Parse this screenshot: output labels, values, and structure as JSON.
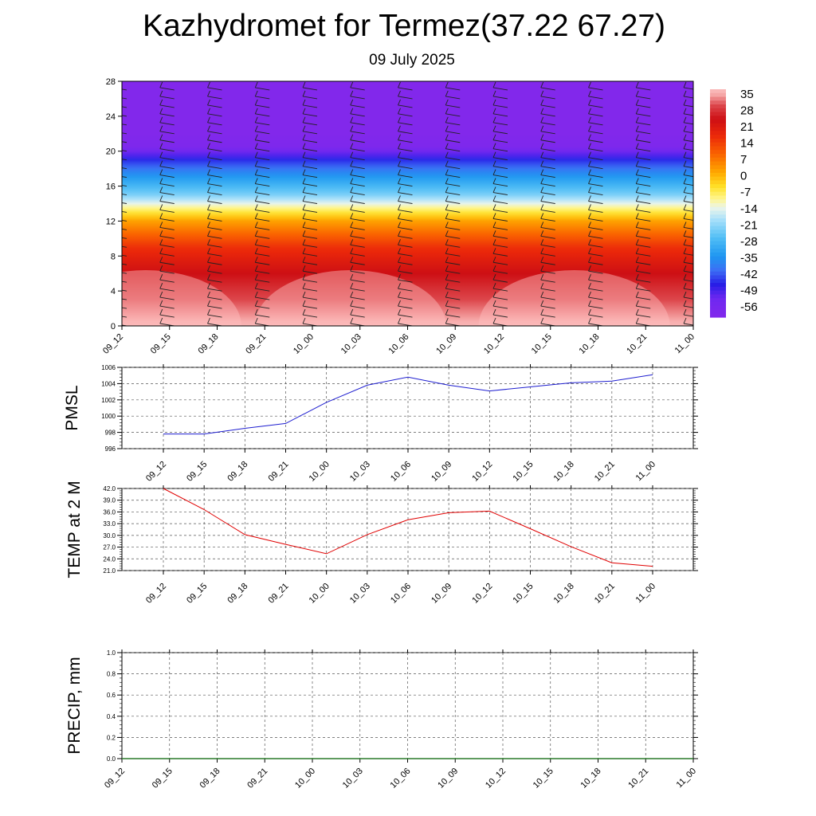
{
  "title": "Kazhydromet for Termez(37.22 67.27)",
  "subtitle": "09 July 2025",
  "time_labels": [
    "09_12",
    "09_15",
    "09_18",
    "09_21",
    "10_00",
    "10_03",
    "10_06",
    "10_09",
    "10_12",
    "10_15",
    "10_18",
    "10_21",
    "11_00"
  ],
  "colors": {
    "pmsl_line": "#1f1fd0",
    "temp_line": "#e00000",
    "precip_line": "#2a7a2a",
    "grid": "#555555"
  },
  "chart_data": [
    {
      "type": "heatmap",
      "description_of_field": "temperature cross-section with wind barbs",
      "x": [
        "09_12",
        "09_15",
        "09_18",
        "09_21",
        "10_00",
        "10_03",
        "10_06",
        "10_09",
        "10_12",
        "10_15",
        "10_18",
        "10_21",
        "11_00"
      ],
      "y_ticks": [
        0,
        4,
        8,
        12,
        16,
        20,
        24,
        28
      ],
      "ylim": [
        0,
        28
      ],
      "colorbar_labels": [
        "35",
        "28",
        "21",
        "14",
        "7",
        "0",
        "-7",
        "-14",
        "-21",
        "-28",
        "-35",
        "-42",
        "-49",
        "-56"
      ],
      "colorbar_range": [
        -60,
        38
      ],
      "level_temps_bottom_to_top": [
        {
          "level": 0,
          "value": 37
        },
        {
          "level": 3,
          "value": 31
        },
        {
          "level": 6,
          "value": 25
        },
        {
          "level": 9,
          "value": 17
        },
        {
          "level": 12,
          "value": 3
        },
        {
          "level": 13.5,
          "value": -9
        },
        {
          "level": 15,
          "value": -22
        },
        {
          "level": 17,
          "value": -33
        },
        {
          "level": 19,
          "value": -45
        },
        {
          "level": 20.5,
          "value": -58
        },
        {
          "level": 22,
          "value": -60
        },
        {
          "level": 28,
          "value": -60
        }
      ]
    },
    {
      "type": "line",
      "ylabel": "PMSL",
      "x": [
        "09_12",
        "09_15",
        "09_18",
        "09_21",
        "10_00",
        "10_03",
        "10_06",
        "10_09",
        "10_12",
        "10_15",
        "10_18",
        "10_21",
        "11_00"
      ],
      "values": [
        997.8,
        997.8,
        998.5,
        999.1,
        1001.7,
        1003.8,
        1004.8,
        1003.8,
        1003.1,
        1003.6,
        1004.1,
        1004.3,
        1005.1
      ],
      "ylim": [
        996,
        1006
      ],
      "y_ticks": [
        "996",
        "998",
        "1000",
        "1002",
        "1004",
        "1006"
      ],
      "grid": true
    },
    {
      "type": "line",
      "ylabel": "TEMP at 2 M",
      "x": [
        "09_12",
        "09_15",
        "09_18",
        "09_21",
        "10_00",
        "10_03",
        "10_06",
        "10_09",
        "10_12",
        "10_15",
        "10_18",
        "10_21",
        "11_00"
      ],
      "values": [
        42.0,
        36.6,
        30.2,
        27.7,
        25.3,
        30.2,
        34.0,
        35.8,
        36.2,
        31.7,
        27.1,
        23.0,
        22.1
      ],
      "ylim": [
        21,
        42
      ],
      "y_ticks": [
        "21.0",
        "24.0",
        "27.0",
        "30.0",
        "33.0",
        "36.0",
        "39.0",
        "42.0"
      ],
      "grid": true
    },
    {
      "type": "line",
      "ylabel": "PRECIP, mm",
      "x": [
        "09_12",
        "09_15",
        "09_18",
        "09_21",
        "10_00",
        "10_03",
        "10_06",
        "10_09",
        "10_12",
        "10_15",
        "10_18",
        "10_21",
        "11_00"
      ],
      "values": [
        0,
        0,
        0,
        0,
        0,
        0,
        0,
        0,
        0,
        0,
        0,
        0,
        0
      ],
      "ylim": [
        0,
        1
      ],
      "y_ticks": [
        "0.0",
        "0.2",
        "0.4",
        "0.6",
        "0.8",
        "1.0"
      ],
      "grid": true
    }
  ]
}
